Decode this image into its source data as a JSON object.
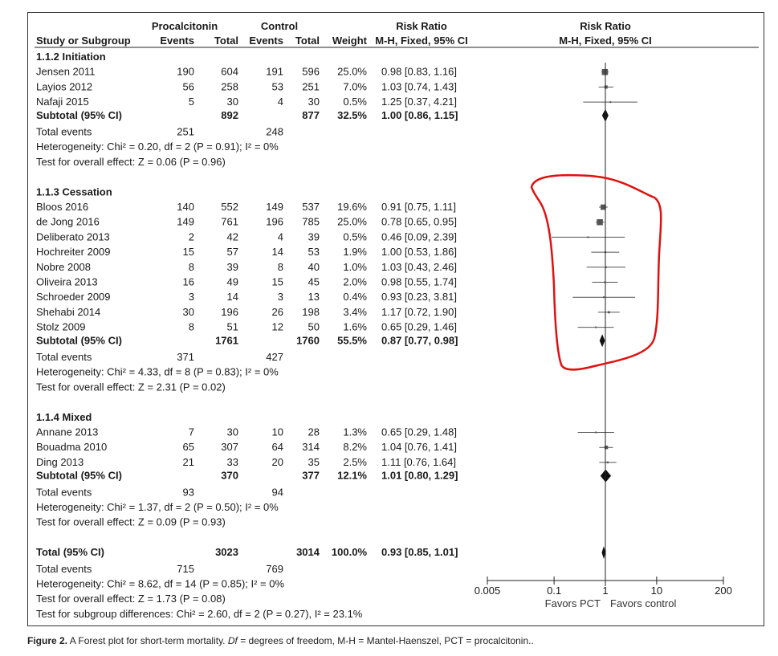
{
  "chart_data": {
    "type": "forest",
    "header": {
      "group1": "Procalcitonin",
      "group2": "Control",
      "rr_text_header": "Risk Ratio",
      "rr_text_sub": "M-H, Fixed, 95% CI",
      "rr_plot_header": "Risk Ratio",
      "rr_plot_sub": "M-H, Fixed, 95% CI",
      "study_col": "Study or Subgroup",
      "events": "Events",
      "total": "Total",
      "weight": "Weight"
    },
    "subgroups": [
      {
        "title": "1.1.2 Initiation",
        "studies": [
          {
            "name": "Jensen 2011",
            "e1": "190",
            "n1": "604",
            "e2": "191",
            "n2": "596",
            "weight": "25.0%",
            "ci_text": "0.98 [0.83, 1.16]",
            "rr": 0.98,
            "lo": 0.83,
            "hi": 1.16
          },
          {
            "name": "Layios 2012",
            "e1": "56",
            "n1": "258",
            "e2": "53",
            "n2": "251",
            "weight": "7.0%",
            "ci_text": "1.03 [0.74, 1.43]",
            "rr": 1.03,
            "lo": 0.74,
            "hi": 1.43
          },
          {
            "name": "Nafaji 2015",
            "e1": "5",
            "n1": "30",
            "e2": "4",
            "n2": "30",
            "weight": "0.5%",
            "ci_text": "1.25 [0.37, 4.21]",
            "rr": 1.25,
            "lo": 0.37,
            "hi": 4.21
          }
        ],
        "subtotal": {
          "label": "Subtotal (95% CI)",
          "n1": "892",
          "n2": "877",
          "weight": "32.5%",
          "ci_text": "1.00 [0.86, 1.15]",
          "rr": 1.0,
          "lo": 0.86,
          "hi": 1.15
        },
        "total_events": {
          "label": "Total events",
          "e1": "251",
          "e2": "248"
        },
        "heterogeneity": "Heterogeneity: Chi² = 0.20, df = 2 (P = 0.91); I² = 0%",
        "overall": "Test for overall effect: Z = 0.06 (P = 0.96)"
      },
      {
        "title": "1.1.3 Cessation",
        "studies": [
          {
            "name": "Bloos 2016",
            "e1": "140",
            "n1": "552",
            "e2": "149",
            "n2": "537",
            "weight": "19.6%",
            "ci_text": "0.91 [0.75, 1.11]",
            "rr": 0.91,
            "lo": 0.75,
            "hi": 1.11
          },
          {
            "name": "de Jong 2016",
            "e1": "149",
            "n1": "761",
            "e2": "196",
            "n2": "785",
            "weight": "25.0%",
            "ci_text": "0.78 [0.65, 0.95]",
            "rr": 0.78,
            "lo": 0.65,
            "hi": 0.95
          },
          {
            "name": "Deliberato 2013",
            "e1": "2",
            "n1": "42",
            "e2": "4",
            "n2": "39",
            "weight": "0.5%",
            "ci_text": "0.46 [0.09, 2.39]",
            "rr": 0.46,
            "lo": 0.09,
            "hi": 2.39
          },
          {
            "name": "Hochreiter 2009",
            "e1": "15",
            "n1": "57",
            "e2": "14",
            "n2": "53",
            "weight": "1.9%",
            "ci_text": "1.00 [0.53, 1.86]",
            "rr": 1.0,
            "lo": 0.53,
            "hi": 1.86
          },
          {
            "name": "Nobre 2008",
            "e1": "8",
            "n1": "39",
            "e2": "8",
            "n2": "40",
            "weight": "1.0%",
            "ci_text": "1.03 [0.43, 2.46]",
            "rr": 1.03,
            "lo": 0.43,
            "hi": 2.46
          },
          {
            "name": "Oliveira 2013",
            "e1": "16",
            "n1": "49",
            "e2": "15",
            "n2": "45",
            "weight": "2.0%",
            "ci_text": "0.98 [0.55, 1.74]",
            "rr": 0.98,
            "lo": 0.55,
            "hi": 1.74
          },
          {
            "name": "Schroeder 2009",
            "e1": "3",
            "n1": "14",
            "e2": "3",
            "n2": "13",
            "weight": "0.4%",
            "ci_text": "0.93 [0.23, 3.81]",
            "rr": 0.93,
            "lo": 0.23,
            "hi": 3.81
          },
          {
            "name": "Shehabi 2014",
            "e1": "30",
            "n1": "196",
            "e2": "26",
            "n2": "198",
            "weight": "3.4%",
            "ci_text": "1.17 [0.72, 1.90]",
            "rr": 1.17,
            "lo": 0.72,
            "hi": 1.9
          },
          {
            "name": "Stolz 2009",
            "e1": "8",
            "n1": "51",
            "e2": "12",
            "n2": "50",
            "weight": "1.6%",
            "ci_text": "0.65 [0.29, 1.46]",
            "rr": 0.65,
            "lo": 0.29,
            "hi": 1.46
          }
        ],
        "subtotal": {
          "label": "Subtotal (95% CI)",
          "n1": "1761",
          "n2": "1760",
          "weight": "55.5%",
          "ci_text": "0.87 [0.77, 0.98]",
          "rr": 0.87,
          "lo": 0.77,
          "hi": 0.98
        },
        "total_events": {
          "label": "Total events",
          "e1": "371",
          "e2": "427"
        },
        "heterogeneity": "Heterogeneity: Chi² = 4.33, df = 8 (P = 0.83); I² = 0%",
        "overall": "Test for overall effect: Z = 2.31 (P = 0.02)"
      },
      {
        "title": "1.1.4 Mixed",
        "studies": [
          {
            "name": "Annane 2013",
            "e1": "7",
            "n1": "30",
            "e2": "10",
            "n2": "28",
            "weight": "1.3%",
            "ci_text": "0.65 [0.29, 1.48]",
            "rr": 0.65,
            "lo": 0.29,
            "hi": 1.48
          },
          {
            "name": "Bouadma 2010",
            "e1": "65",
            "n1": "307",
            "e2": "64",
            "n2": "314",
            "weight": "8.2%",
            "ci_text": "1.04 [0.76, 1.41]",
            "rr": 1.04,
            "lo": 0.76,
            "hi": 1.41
          },
          {
            "name": "Ding 2013",
            "e1": "21",
            "n1": "33",
            "e2": "20",
            "n2": "35",
            "weight": "2.5%",
            "ci_text": "1.11 [0.76, 1.64]",
            "rr": 1.11,
            "lo": 0.76,
            "hi": 1.64
          }
        ],
        "subtotal": {
          "label": "Subtotal (95% CI)",
          "n1": "370",
          "n2": "377",
          "weight": "12.1%",
          "ci_text": "1.01 [0.80, 1.29]",
          "rr": 1.01,
          "lo": 0.8,
          "hi": 1.29
        },
        "total_events": {
          "label": "Total events",
          "e1": "93",
          "e2": "94"
        },
        "heterogeneity": "Heterogeneity: Chi² = 1.37, df = 2 (P = 0.50); I² = 0%",
        "overall": "Test for overall effect: Z = 0.09 (P = 0.93)"
      }
    ],
    "total": {
      "label": "Total (95% CI)",
      "n1": "3023",
      "n2": "3014",
      "weight": "100.0%",
      "ci_text": "0.93 [0.85, 1.01]",
      "rr": 0.93,
      "lo": 0.85,
      "hi": 1.01
    },
    "total_events": {
      "label": "Total events",
      "e1": "715",
      "e2": "769"
    },
    "footer_lines": [
      "Heterogeneity: Chi² = 8.62, df = 14 (P = 0.85); I² = 0%",
      "Test for overall effect: Z = 1.73 (P = 0.08)",
      "Test for subgroup differences: Chi² = 2.60, df = 2 (P = 0.27), I² = 23.1%"
    ],
    "axis": {
      "scale": "log",
      "xlim": [
        0.005,
        200
      ],
      "ticks": [
        0.005,
        0.1,
        1,
        10,
        200
      ],
      "tick_labels": [
        "0.005",
        "0.1",
        "1",
        "10",
        "200"
      ],
      "favors_left": "Favors PCT",
      "favors_right": "Favors control"
    },
    "annotation": {
      "shape": "freehand-outline",
      "color": "#e01010",
      "around": "1.1.3 Cessation study rows"
    }
  },
  "caption": {
    "label": "Figure 2.",
    "text": " A Forest plot for short-term mortality. ",
    "df_term": "Df",
    "rest": " = degrees of freedom, M-H = Mantel-Haenszel, PCT = procalcitonin.."
  },
  "colors": {
    "marker": "#555555",
    "diamond": "#111111",
    "annotation": "#e01010"
  }
}
